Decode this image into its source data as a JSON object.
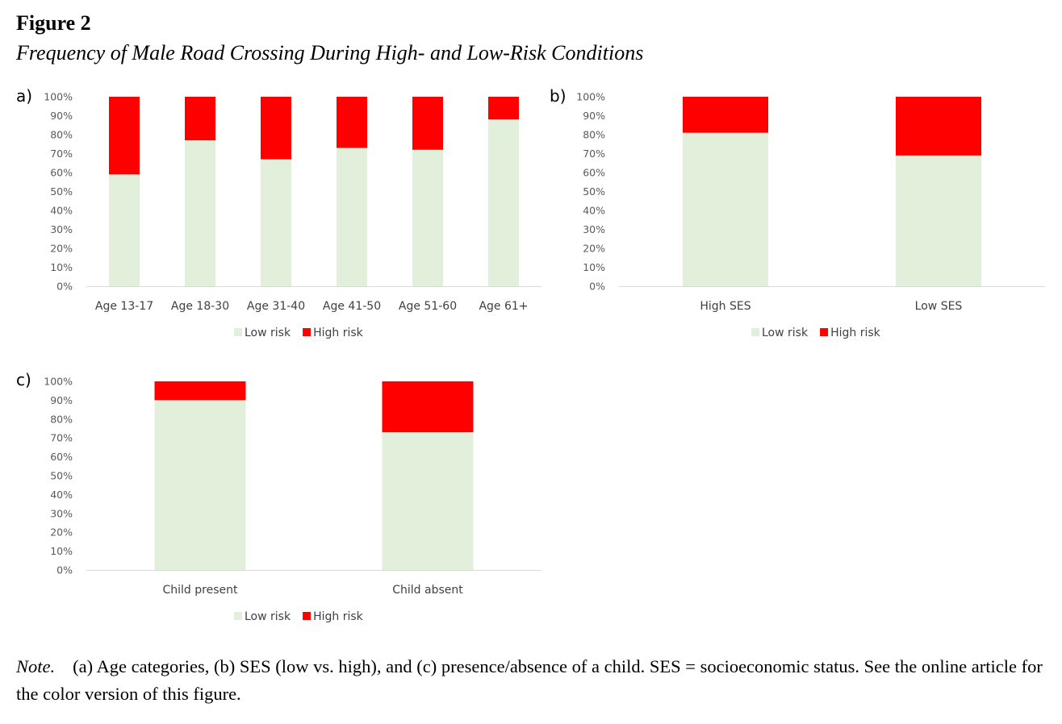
{
  "figure": {
    "label": "Figure 2",
    "title": "Frequency of Male Road Crossing During High- and Low-Risk Conditions"
  },
  "note": {
    "label": "Note.",
    "text": "(a) Age categories, (b) SES (low vs. high), and (c) presence/absence of a child. SES = socioeconomic status. See the online article for the color version of this figure."
  },
  "colors": {
    "low_risk": "#e2efda",
    "high_risk": "#ff0000",
    "axis": "#d9d9d9"
  },
  "chart_data": [
    {
      "panel": "a)",
      "type": "bar",
      "stacked": "100%",
      "categories": [
        "Age 13-17",
        "Age 18-30",
        "Age 31-40",
        "Age 41-50",
        "Age 51-60",
        "Age 61+"
      ],
      "series": [
        {
          "name": "Low risk",
          "values": [
            59,
            77,
            67,
            73,
            72,
            88
          ]
        },
        {
          "name": "High risk",
          "values": [
            41,
            23,
            33,
            27,
            28,
            12
          ]
        }
      ],
      "yticks": [
        "0%",
        "10%",
        "20%",
        "30%",
        "40%",
        "50%",
        "60%",
        "70%",
        "80%",
        "90%",
        "100%"
      ],
      "ylim": [
        0,
        100
      ],
      "legend": "bottom"
    },
    {
      "panel": "b)",
      "type": "bar",
      "stacked": "100%",
      "categories": [
        "High SES",
        "Low SES"
      ],
      "series": [
        {
          "name": "Low risk",
          "values": [
            81,
            69
          ]
        },
        {
          "name": "High risk",
          "values": [
            19,
            31
          ]
        }
      ],
      "yticks": [
        "0%",
        "10%",
        "20%",
        "30%",
        "40%",
        "50%",
        "60%",
        "70%",
        "80%",
        "90%",
        "100%"
      ],
      "ylim": [
        0,
        100
      ],
      "legend": "bottom"
    },
    {
      "panel": "c)",
      "type": "bar",
      "stacked": "100%",
      "categories": [
        "Child present",
        "Child absent"
      ],
      "series": [
        {
          "name": "Low risk",
          "values": [
            90,
            73
          ]
        },
        {
          "name": "High risk",
          "values": [
            10,
            27
          ]
        }
      ],
      "yticks": [
        "0%",
        "10%",
        "20%",
        "30%",
        "40%",
        "50%",
        "60%",
        "70%",
        "80%",
        "90%",
        "100%"
      ],
      "ylim": [
        0,
        100
      ],
      "legend": "bottom"
    }
  ]
}
